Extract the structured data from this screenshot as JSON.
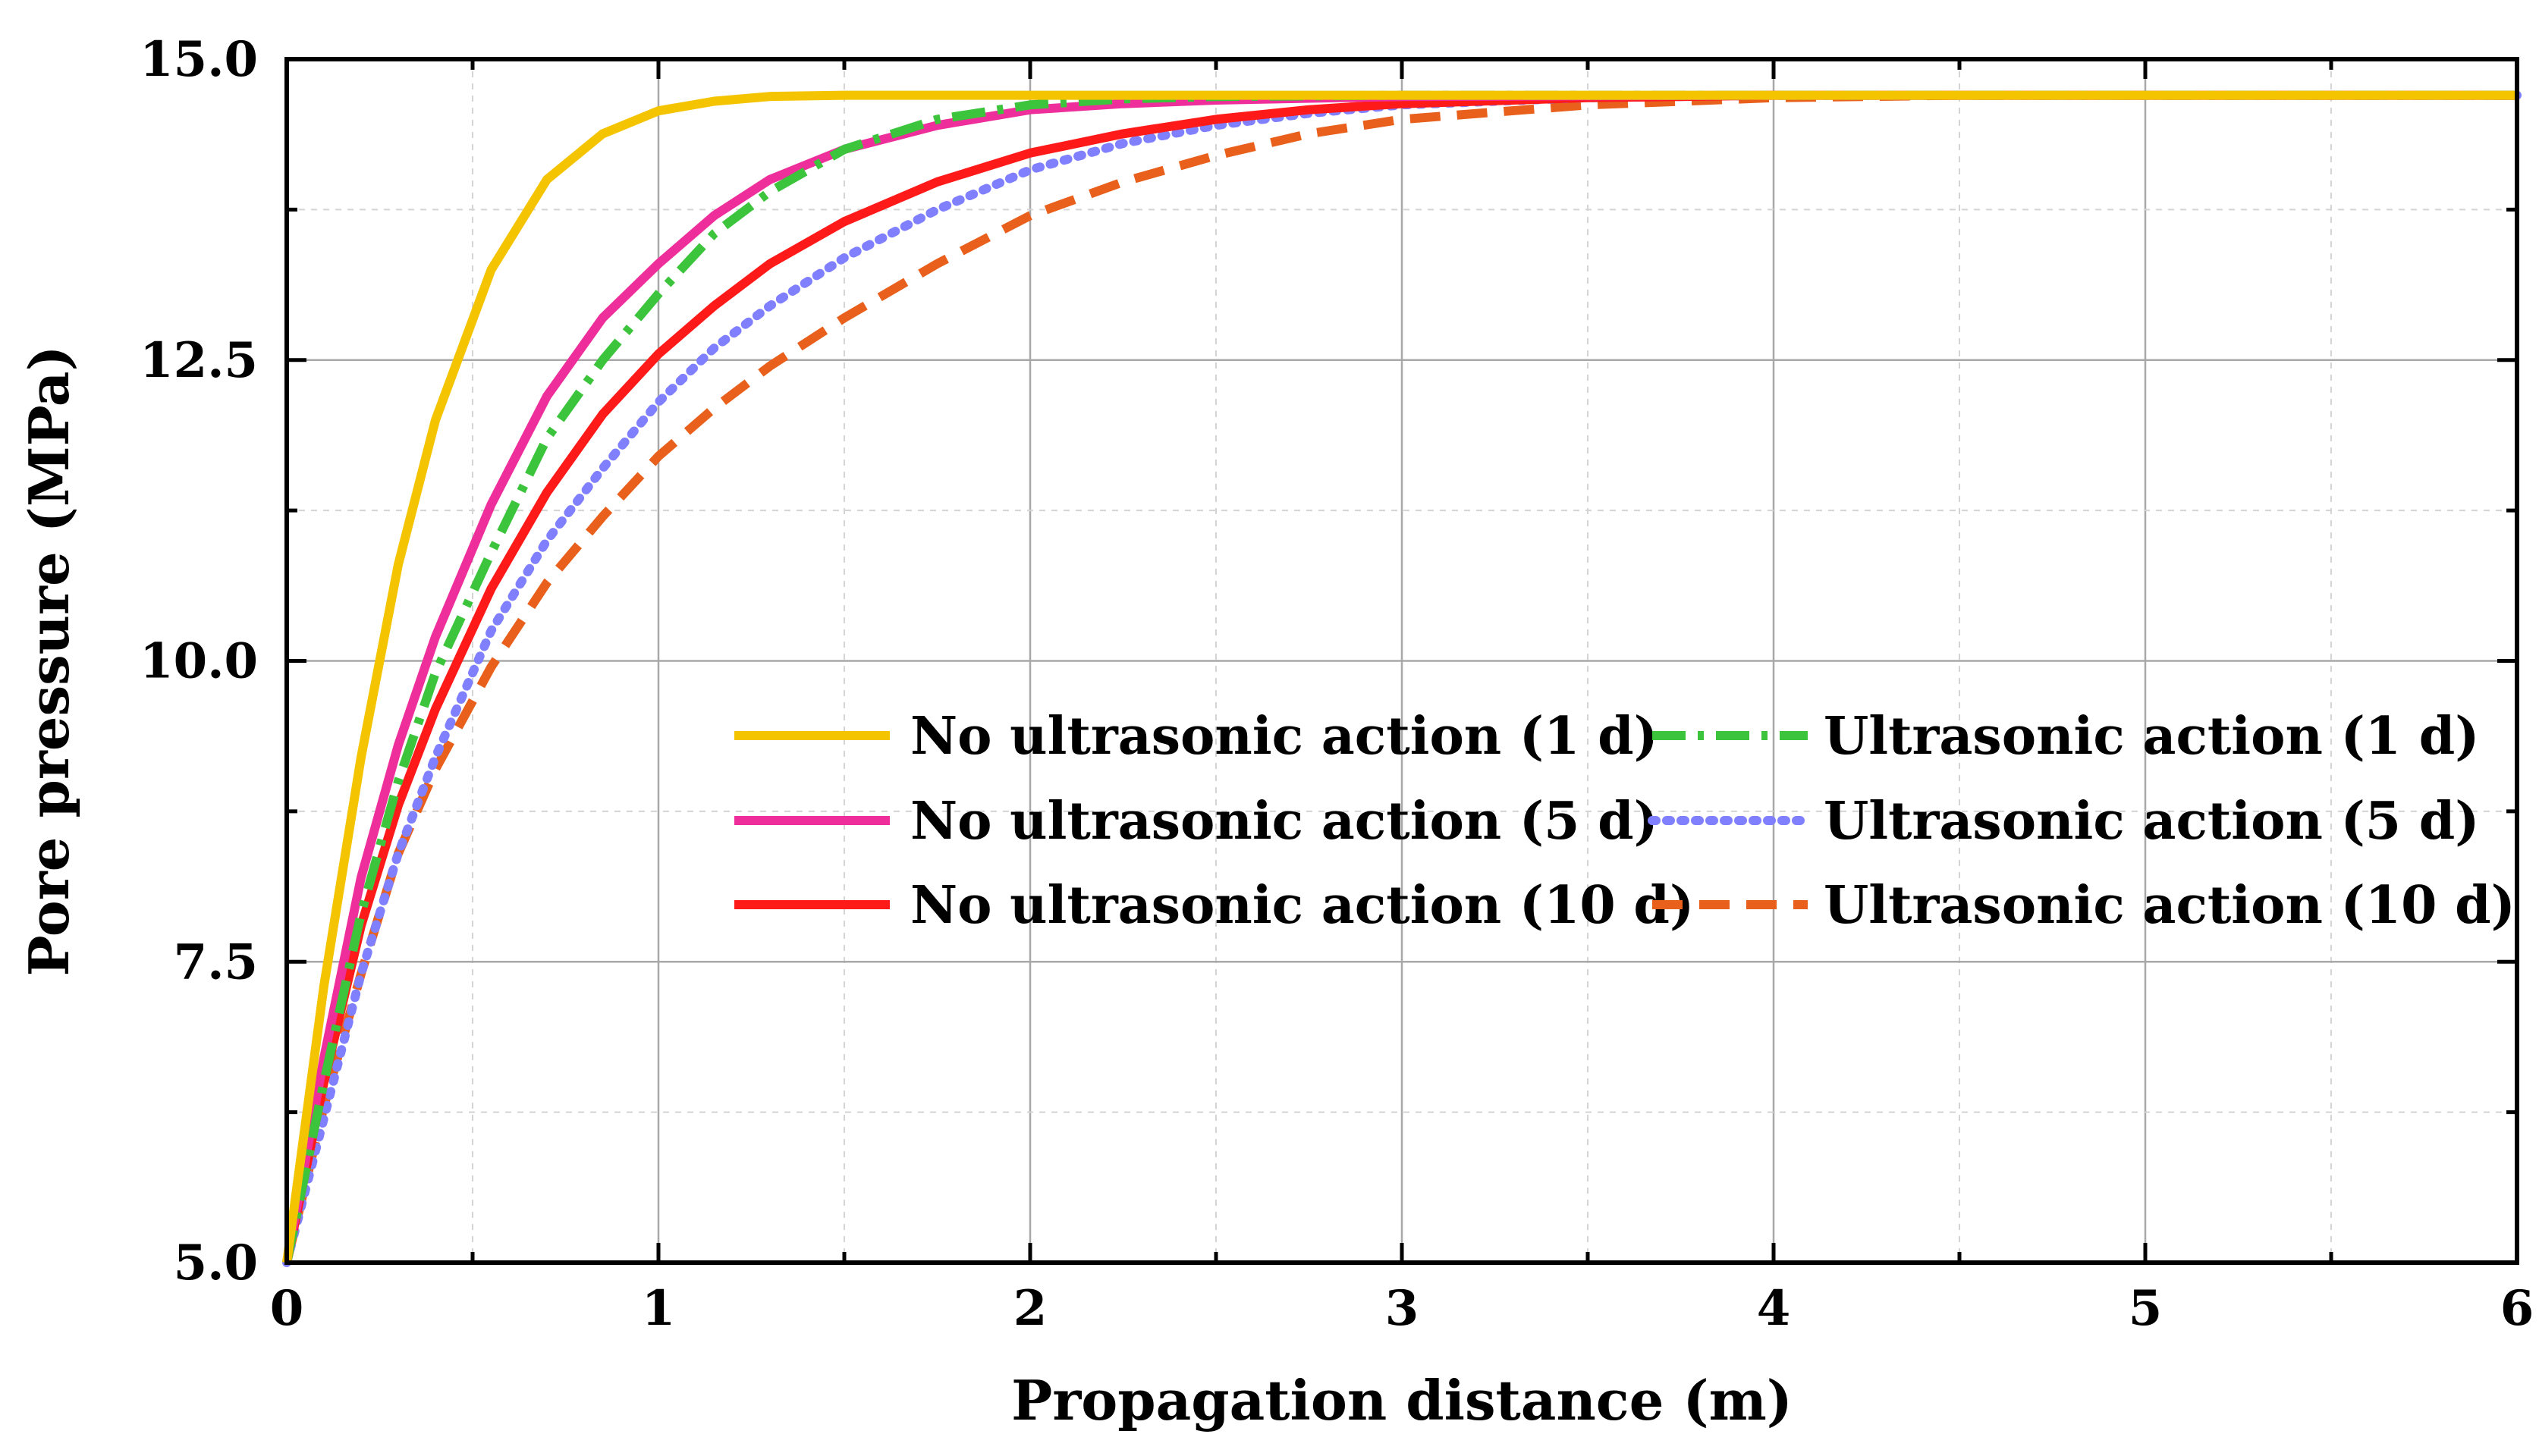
{
  "chart_data": {
    "type": "line",
    "title": "",
    "xlabel": "Propagation distance (m)",
    "ylabel": "Pore pressure (MPa)",
    "xlim": [
      0,
      6
    ],
    "ylim": [
      5.0,
      15.0
    ],
    "x_ticks": [
      0,
      1,
      2,
      3,
      4,
      5,
      6
    ],
    "x_tick_labels": [
      "0",
      "1",
      "2",
      "3",
      "4",
      "5",
      "6"
    ],
    "y_ticks": [
      5.0,
      7.5,
      10.0,
      12.5,
      15.0
    ],
    "y_tick_labels": [
      "5.0",
      "7.5",
      "10.0",
      "12.5",
      "15.0"
    ],
    "grid": true,
    "legend_position": "center-right",
    "series": [
      {
        "name": "No ultrasonic action (1 d)",
        "color": "#f5c400",
        "style": "solid",
        "x": [
          0,
          0.1,
          0.2,
          0.3,
          0.4,
          0.55,
          0.7,
          0.85,
          1.0,
          1.15,
          1.3,
          1.5,
          1.75,
          2.0,
          2.5,
          3.0,
          4.0,
          5.0,
          6.0
        ],
        "y": [
          5.0,
          7.3,
          9.2,
          10.8,
          12.0,
          13.25,
          14.0,
          14.38,
          14.57,
          14.65,
          14.69,
          14.7,
          14.7,
          14.7,
          14.7,
          14.7,
          14.7,
          14.7,
          14.7
        ]
      },
      {
        "name": "No ultrasonic action (5 d)",
        "color": "#ee2f9b",
        "style": "solid",
        "x": [
          0,
          0.1,
          0.2,
          0.3,
          0.4,
          0.55,
          0.7,
          0.85,
          1.0,
          1.15,
          1.3,
          1.5,
          1.75,
          2.0,
          2.25,
          2.5,
          3.0,
          4.0,
          5.0,
          6.0
        ],
        "y": [
          5.0,
          6.7,
          8.2,
          9.3,
          10.2,
          11.3,
          12.2,
          12.85,
          13.3,
          13.7,
          14.0,
          14.25,
          14.45,
          14.58,
          14.63,
          14.66,
          14.69,
          14.7,
          14.7,
          14.7
        ]
      },
      {
        "name": "No ultrasonic action (10 d)",
        "color": "#ff1a1a",
        "style": "solid",
        "x": [
          0,
          0.1,
          0.2,
          0.3,
          0.4,
          0.55,
          0.7,
          0.85,
          1.0,
          1.15,
          1.3,
          1.5,
          1.75,
          2.0,
          2.25,
          2.5,
          2.75,
          3.0,
          3.5,
          4.0,
          5.0,
          6.0
        ],
        "y": [
          5.0,
          6.5,
          7.8,
          8.8,
          9.6,
          10.6,
          11.4,
          12.05,
          12.55,
          12.95,
          13.3,
          13.65,
          13.98,
          14.22,
          14.38,
          14.5,
          14.58,
          14.63,
          14.68,
          14.7,
          14.7,
          14.7
        ]
      },
      {
        "name": "Ultrasonic action (1 d)",
        "color": "#3cc43c",
        "style": "dashdot",
        "x": [
          0,
          0.1,
          0.2,
          0.3,
          0.4,
          0.55,
          0.7,
          0.85,
          1.0,
          1.15,
          1.3,
          1.5,
          1.75,
          2.0,
          2.25,
          2.5,
          3.0,
          4.0,
          5.0,
          6.0
        ],
        "y": [
          5.0,
          6.5,
          7.9,
          9.0,
          9.9,
          10.9,
          11.85,
          12.5,
          13.05,
          13.55,
          13.9,
          14.25,
          14.5,
          14.62,
          14.67,
          14.69,
          14.7,
          14.7,
          14.7,
          14.7
        ]
      },
      {
        "name": "Ultrasonic action (5 d)",
        "color": "#8080ff",
        "style": "dotted",
        "x": [
          0,
          0.1,
          0.2,
          0.3,
          0.4,
          0.55,
          0.7,
          0.85,
          1.0,
          1.15,
          1.3,
          1.5,
          1.75,
          2.0,
          2.25,
          2.5,
          2.75,
          3.0,
          3.5,
          4.0,
          5.0,
          6.0
        ],
        "y": [
          5.0,
          6.2,
          7.4,
          8.4,
          9.2,
          10.25,
          11.0,
          11.6,
          12.15,
          12.6,
          12.95,
          13.35,
          13.75,
          14.08,
          14.3,
          14.45,
          14.55,
          14.62,
          14.68,
          14.7,
          14.7,
          14.7
        ]
      },
      {
        "name": "Ultrasonic action (10 d)",
        "color": "#e8601c",
        "style": "dashed",
        "x": [
          0,
          0.1,
          0.2,
          0.3,
          0.4,
          0.55,
          0.7,
          0.85,
          1.0,
          1.15,
          1.3,
          1.5,
          1.75,
          2.0,
          2.25,
          2.5,
          2.75,
          3.0,
          3.5,
          4.0,
          4.5,
          5.0,
          6.0
        ],
        "y": [
          5.0,
          6.3,
          7.4,
          8.4,
          9.1,
          9.95,
          10.65,
          11.2,
          11.7,
          12.1,
          12.45,
          12.85,
          13.3,
          13.7,
          13.98,
          14.2,
          14.38,
          14.5,
          14.62,
          14.68,
          14.7,
          14.7,
          14.7
        ]
      }
    ]
  }
}
